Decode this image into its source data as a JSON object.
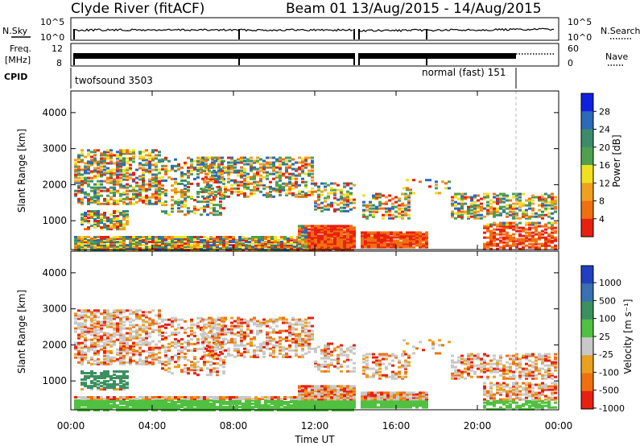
{
  "header": {
    "station": "Clyde River (fitACF)",
    "beam_info": "Beam 01  13/Aug/2015 - 14/Aug/2015"
  },
  "top_panels": {
    "nsky_label": "N.Sky",
    "nsky_ticks": [
      "10^5",
      "10^0"
    ],
    "nsearch_label": "N.Search",
    "nsearch_ticks": [
      "10^5",
      "10^0"
    ],
    "freq_label_1": "Freq.",
    "freq_label_2": "[MHz]",
    "freq_ticks": [
      "12",
      "8"
    ],
    "nave_label": "Nave",
    "nave_ticks": [
      "60",
      "0"
    ],
    "cpid_label": "CPID",
    "cpid_1": "twofsound 3503",
    "cpid_2": "normal (fast) 151"
  },
  "chart_data": [
    {
      "type": "heatmap",
      "name": "power",
      "ylabel": "Slant Range [km]",
      "yticks": [
        1000,
        2000,
        3000,
        4000
      ],
      "ylim": [
        200,
        4600
      ],
      "colorbar_label": "Power [dB]",
      "colorbar_ticks": [
        "4",
        "8",
        "12",
        "16",
        "20",
        "24",
        "28"
      ],
      "colors": [
        "#1020e0",
        "#2a6ab8",
        "#3c8c6c",
        "#50a050",
        "#f0e020",
        "#f0a020",
        "#f07010",
        "#e82010"
      ]
    },
    {
      "type": "heatmap",
      "name": "velocity",
      "ylabel": "Slant Range [km]",
      "yticks": [
        1000,
        2000,
        3000,
        4000
      ],
      "ylim": [
        200,
        4600
      ],
      "colorbar_label": "Velocity [m s⁻¹]",
      "colorbar_ticks": [
        "1000",
        "500",
        "100",
        "25",
        "-25",
        "-100",
        "-500",
        "-1000"
      ],
      "colors": [
        "#2040c0",
        "#3a70b0",
        "#3c9060",
        "#50c040",
        "#c8c8c8",
        "#e8a020",
        "#f07010",
        "#e82010"
      ]
    }
  ],
  "time_axis": {
    "ticks": [
      "00:00",
      "04:00",
      "08:00",
      "12:00",
      "16:00",
      "20:00",
      "00:00"
    ],
    "label": "Time UT"
  }
}
